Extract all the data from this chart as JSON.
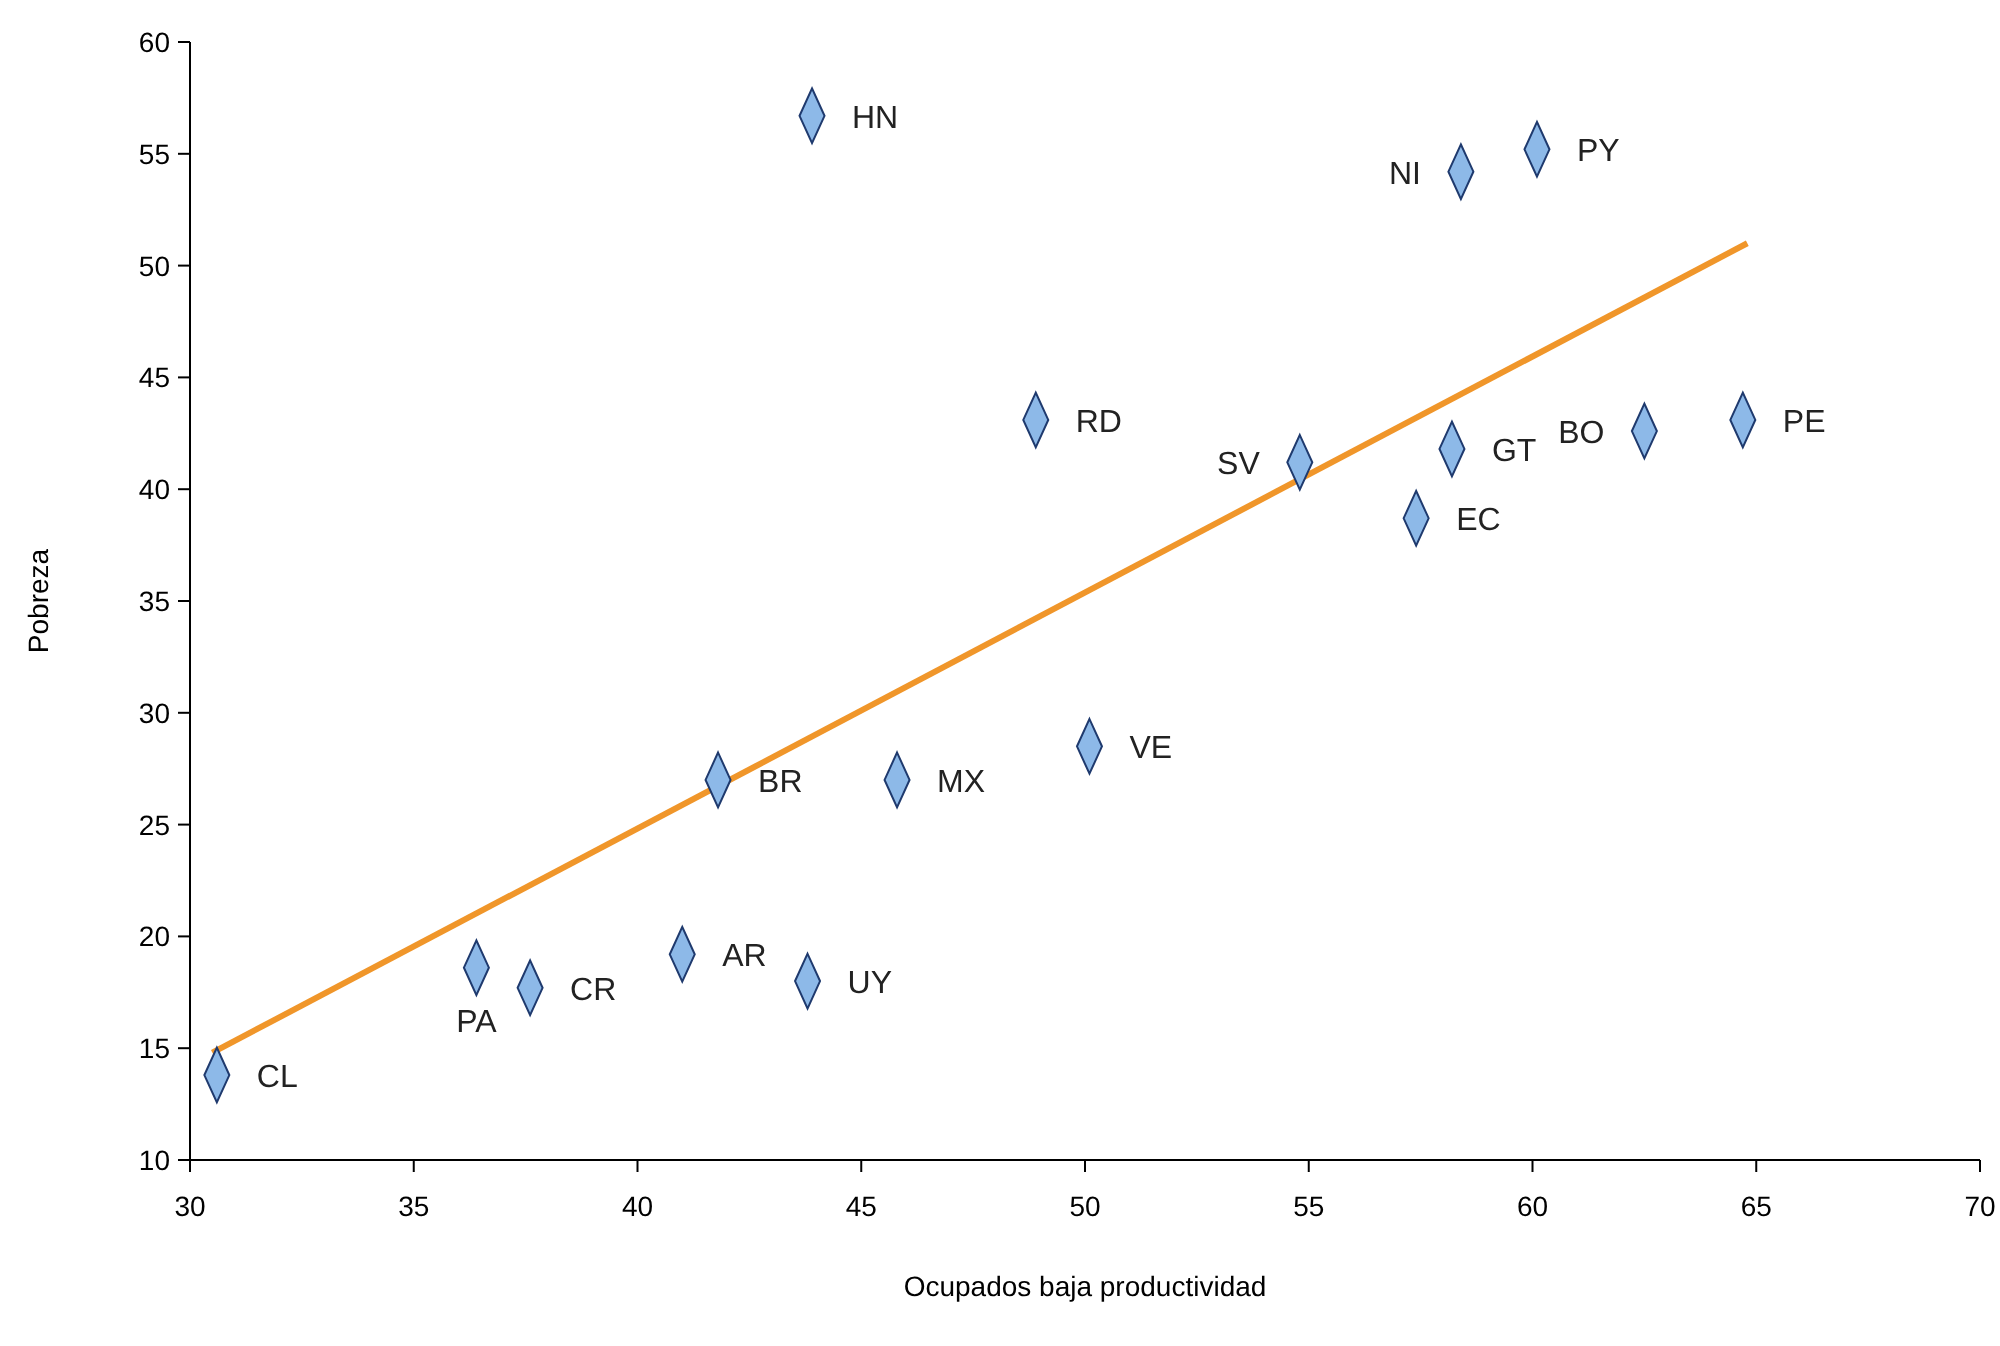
{
  "chart_data": {
    "type": "scatter",
    "xlabel": "Ocupados baja productividad",
    "ylabel": "Pobreza",
    "xlim": [
      30,
      70
    ],
    "ylim": [
      10,
      60
    ],
    "xticks": [
      30,
      35,
      40,
      45,
      50,
      55,
      60,
      65,
      70
    ],
    "yticks": [
      10,
      15,
      20,
      25,
      30,
      35,
      40,
      45,
      50,
      55,
      60
    ],
    "grid": false,
    "series": [
      {
        "color": "#8db9e8",
        "marker": "diamond",
        "x": [
          30.6,
          36.4,
          37.6,
          41.0,
          43.8,
          41.8,
          45.8,
          50.1,
          48.9,
          43.9,
          54.8,
          57.4,
          58.2,
          58.4,
          60.1,
          62.5,
          64.7
        ],
        "values": [
          13.8,
          18.6,
          17.7,
          19.2,
          18.0,
          27.0,
          27.0,
          28.5,
          43.1,
          56.7,
          41.2,
          38.7,
          41.8,
          54.2,
          55.2,
          42.6,
          43.1
        ]
      },
      {
        "type": "line",
        "color": "#f0962a",
        "marker": "none",
        "x": [
          30.5,
          64.8
        ],
        "values": [
          14.8,
          51.0
        ]
      }
    ],
    "annotations": [
      {
        "text": "CL",
        "x": 30.6,
        "y": 13.8
      },
      {
        "text": "PA",
        "x": 36.4,
        "y": 18.6
      },
      {
        "text": "CR",
        "x": 37.6,
        "y": 17.7
      },
      {
        "text": "AR",
        "x": 41.0,
        "y": 19.2
      },
      {
        "text": "UY",
        "x": 43.8,
        "y": 18.0
      },
      {
        "text": "BR",
        "x": 41.8,
        "y": 27.0
      },
      {
        "text": "MX",
        "x": 45.8,
        "y": 27.0
      },
      {
        "text": "VE",
        "x": 50.1,
        "y": 28.5
      },
      {
        "text": "RD",
        "x": 48.9,
        "y": 43.1
      },
      {
        "text": "HN",
        "x": 43.9,
        "y": 56.7
      },
      {
        "text": "SV",
        "x": 54.8,
        "y": 41.2
      },
      {
        "text": "EC",
        "x": 57.4,
        "y": 38.7
      },
      {
        "text": "GT",
        "x": 58.2,
        "y": 41.8
      },
      {
        "text": "NI",
        "x": 58.4,
        "y": 54.2
      },
      {
        "text": "PY",
        "x": 60.1,
        "y": 55.2
      },
      {
        "text": "BO",
        "x": 62.5,
        "y": 42.6
      },
      {
        "text": "PE",
        "x": 64.7,
        "y": 43.1
      }
    ]
  }
}
